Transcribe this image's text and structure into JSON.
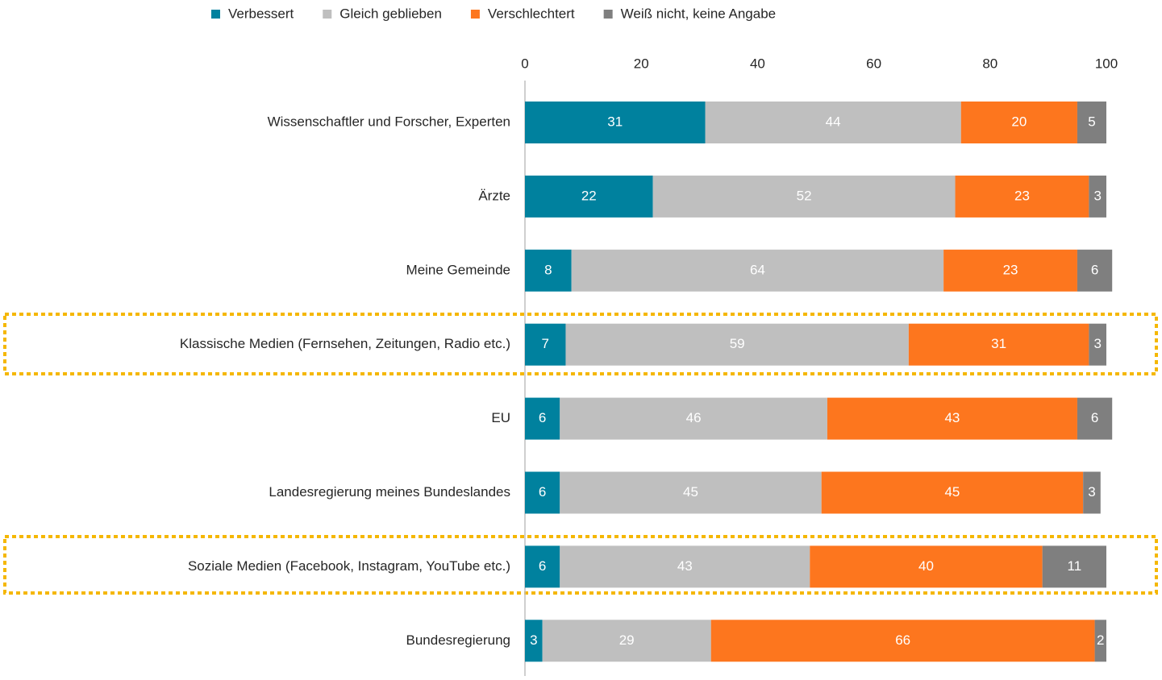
{
  "chart_data": {
    "type": "stacked-bar-horizontal",
    "categories": [
      "Wissenschaftler und Forscher, Experten",
      "Ärzte",
      "Meine Gemeinde",
      "Klassische Medien (Fernsehen, Zeitungen, Radio etc.)",
      "EU",
      "Landesregierung meines Bundeslandes",
      "Soziale Medien (Facebook, Instagram, YouTube etc.)",
      "Bundesregierung"
    ],
    "series": [
      {
        "name": "Verbessert",
        "color": "#00819e",
        "values": [
          31,
          22,
          8,
          7,
          6,
          6,
          6,
          3
        ]
      },
      {
        "name": "Gleich geblieben",
        "color": "#bfbfbf",
        "values": [
          44,
          52,
          64,
          59,
          46,
          45,
          43,
          29
        ]
      },
      {
        "name": "Verschlechtert",
        "color": "#fd761e",
        "values": [
          20,
          23,
          23,
          31,
          43,
          45,
          40,
          66
        ]
      },
      {
        "name": "Weiß nicht, keine Angabe",
        "color": "#7f7f7f",
        "values": [
          5,
          3,
          6,
          3,
          6,
          3,
          11,
          2
        ]
      }
    ],
    "xlim": [
      0,
      100
    ],
    "xticks": [
      0,
      20,
      40,
      60,
      80,
      100
    ],
    "legend": "top"
  }
}
